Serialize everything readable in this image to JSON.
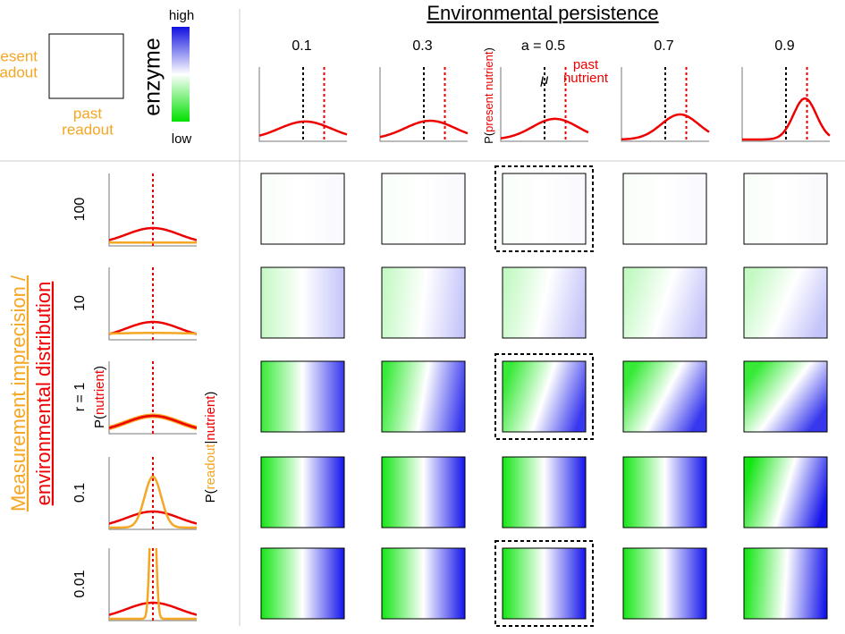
{
  "legend": {
    "present_readout": [
      "present",
      "readout"
    ],
    "past_readout": [
      "past",
      "readout"
    ],
    "colorbar_title": "enzyme",
    "high": "high",
    "low": "low"
  },
  "header": {
    "title": "Environmental persistence",
    "columns": [
      "0.1",
      "0.3",
      "a = 0.5",
      "0.7",
      "0.9"
    ],
    "y_label": {
      "pre": "P(",
      "mid": "present nutrient",
      "post": ")"
    },
    "mu": "μ",
    "past_nutrient": [
      "past",
      "nutrient"
    ]
  },
  "side": {
    "title_top": "Measurement imprecision /",
    "title_bottom": "environmental distribution",
    "rows": [
      "100",
      "10",
      "r = 1",
      "0.1",
      "0.01"
    ],
    "p_nutrient": {
      "pre": "P(",
      "mid": "nutrient",
      "post": ")"
    },
    "p_readout": {
      "pre": "P(",
      "mid": "readout",
      "sep": "|",
      "mid2": "nutrient",
      "post": ")"
    }
  }
}
